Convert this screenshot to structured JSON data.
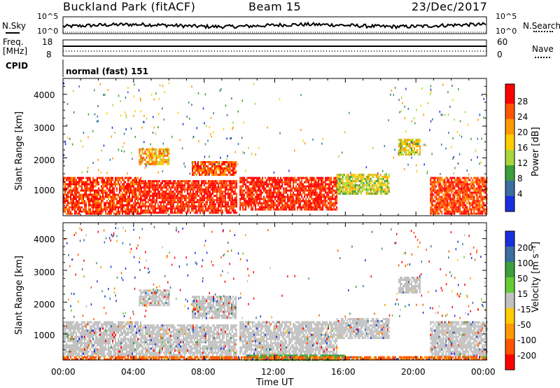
{
  "header": {
    "station": "Buckland Park (fitACF)",
    "beam": "Beam 15",
    "date": "23/Dec/2017"
  },
  "noise_panel": {
    "left_label": "N.Sky",
    "right_label": "N.Search",
    "left_ticks": [
      "10^5",
      "10^0"
    ],
    "right_ticks": [
      "10^5",
      "10^0"
    ]
  },
  "freq_panel": {
    "left_label_line1": "Freq.",
    "left_label_line2": "[MHz]",
    "right_label": "Nave",
    "left_ticks": [
      "18",
      "8"
    ],
    "right_ticks": [
      "60",
      "0"
    ]
  },
  "cpid": {
    "label": "CPID",
    "value": "normal (fast) 151"
  },
  "power_panel": {
    "ylabel": "Slant Range [km]",
    "yticks": [
      "4000",
      "3000",
      "2000",
      "1000"
    ],
    "colorbar_label": "Power [dB]",
    "colorbar_ticks": [
      "28",
      "24",
      "20",
      "16",
      "12",
      "8",
      "4"
    ],
    "colors": [
      "#ff0000",
      "#ff5500",
      "#ff9900",
      "#ffcc00",
      "#a8d63c",
      "#3c9e3c",
      "#3a6e9e",
      "#1a2fe0"
    ]
  },
  "velocity_panel": {
    "ylabel": "Slant Range [km]",
    "yticks": [
      "4000",
      "3000",
      "2000",
      "1000"
    ],
    "colorbar_label": "Velocity [m s⁻¹]",
    "colorbar_ticks": [
      "200",
      "100",
      "50",
      "15",
      "-15",
      "-50",
      "-100",
      "-200"
    ],
    "colors": [
      "#1a2fe0",
      "#3a6e9e",
      "#3c9e3c",
      "#66cc33",
      "#c0c0c0",
      "#ffcc00",
      "#ff9900",
      "#ff5500",
      "#ff0000"
    ]
  },
  "xaxis": {
    "label": "Time UT",
    "ticks": [
      "00:00",
      "04:00",
      "08:00",
      "12:00",
      "16:00",
      "20:00",
      "00:00"
    ]
  },
  "chart_data": [
    {
      "type": "line",
      "title": "N.Sky",
      "x_range_hours": [
        0,
        24
      ],
      "y_scale": "log",
      "ylim": [
        1,
        100000
      ]
    },
    {
      "type": "heatmap",
      "title": "Power [dB]",
      "xlabel": "Time UT",
      "ylabel": "Slant Range [km]",
      "xlim_hours": [
        0,
        24
      ],
      "ylim_km": [
        180,
        4500
      ],
      "clim": [
        0,
        30
      ],
      "regions": [
        {
          "t0": 0.0,
          "t1": 4.4,
          "r0": 250,
          "r1": 1400,
          "value": 26
        },
        {
          "t0": 4.4,
          "t1": 9.8,
          "r0": 250,
          "r1": 1300,
          "value": 27
        },
        {
          "t0": 10.0,
          "t1": 15.5,
          "r0": 400,
          "r1": 1400,
          "value": 27
        },
        {
          "t0": 15.5,
          "t1": 18.5,
          "r0": 900,
          "r1": 1500,
          "value": 16
        },
        {
          "t0": 20.8,
          "t1": 24.0,
          "r0": 250,
          "r1": 1400,
          "value": 25
        },
        {
          "t0": 4.3,
          "t1": 6.0,
          "r0": 1800,
          "r1": 2300,
          "value": 20
        },
        {
          "t0": 7.3,
          "t1": 9.8,
          "r0": 1500,
          "r1": 1900,
          "value": 24
        },
        {
          "t0": 19.0,
          "t1": 20.2,
          "r0": 2100,
          "r1": 2600,
          "value": 17
        }
      ]
    },
    {
      "type": "heatmap",
      "title": "Velocity [m s⁻¹]",
      "xlabel": "Time UT",
      "ylabel": "Slant Range [km]",
      "xlim_hours": [
        0,
        24
      ],
      "ylim_km": [
        180,
        4500
      ],
      "clim": [
        -250,
        250
      ],
      "regions": [
        {
          "t0": 0.0,
          "t1": 4.4,
          "r0": 300,
          "r1": 1400,
          "value": 0
        },
        {
          "t0": 4.4,
          "t1": 9.8,
          "r0": 300,
          "r1": 1300,
          "value": 0
        },
        {
          "t0": 10.0,
          "t1": 15.5,
          "r0": 400,
          "r1": 1400,
          "value": 0
        },
        {
          "t0": 15.5,
          "t1": 18.5,
          "r0": 900,
          "r1": 1500,
          "value": 0
        },
        {
          "t0": 20.8,
          "t1": 24.0,
          "r0": 300,
          "r1": 1400,
          "value": 0
        },
        {
          "t0": 10.3,
          "t1": 16.0,
          "r0": 200,
          "r1": 350,
          "value": 40
        },
        {
          "t0": 0.0,
          "t1": 24.0,
          "r0": 180,
          "r1": 300,
          "value": -80
        },
        {
          "t0": 4.3,
          "t1": 6.0,
          "r0": 1900,
          "r1": 2400,
          "value": 0
        },
        {
          "t0": 7.3,
          "t1": 9.8,
          "r0": 1500,
          "r1": 2200,
          "value": 0
        },
        {
          "t0": 19.0,
          "t1": 20.2,
          "r0": 2300,
          "r1": 2800,
          "value": 0
        }
      ]
    }
  ]
}
